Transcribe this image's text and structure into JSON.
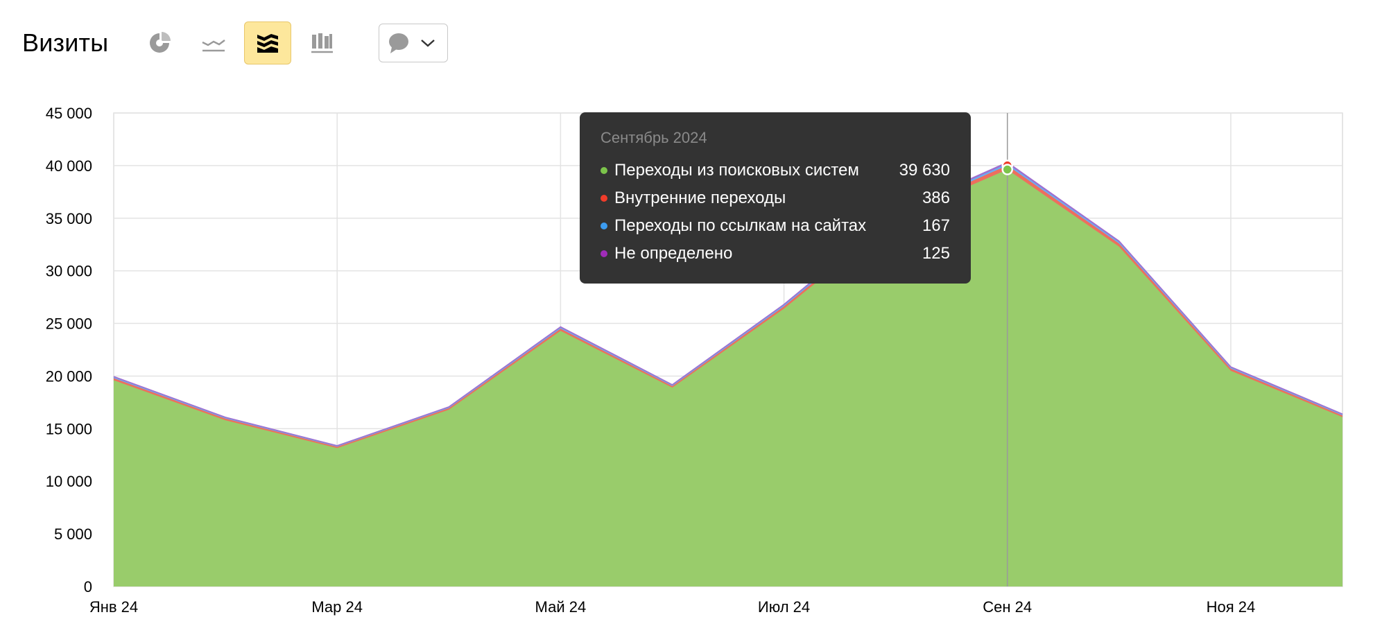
{
  "header": {
    "title": "Визиты",
    "views": [
      {
        "name": "pie-chart-icon",
        "active": false
      },
      {
        "name": "line-chart-icon",
        "active": false
      },
      {
        "name": "area-chart-icon",
        "active": true
      },
      {
        "name": "bar-chart-icon",
        "active": false
      }
    ],
    "annotations_icon": "speech-bubble-icon",
    "dropdown_icon": "chevron-down-icon"
  },
  "tooltip": {
    "title": "Сентябрь 2024",
    "rows": [
      {
        "label": "Переходы из поисковых систем",
        "value": "39 630",
        "color": "#7cc44b"
      },
      {
        "label": "Внутренние переходы",
        "value": "386",
        "color": "#f03c2a"
      },
      {
        "label": "Переходы по ссылкам на сайтах",
        "value": "167",
        "color": "#3c9cf0"
      },
      {
        "label": "Не определено",
        "value": "125",
        "color": "#a02cb8"
      }
    ]
  },
  "chart_data": {
    "type": "area",
    "stacked": true,
    "x": [
      "2024-01",
      "2024-02",
      "2024-03",
      "2024-04",
      "2024-05",
      "2024-06",
      "2024-07",
      "2024-08",
      "2024-09",
      "2024-10",
      "2024-11",
      "2024-12"
    ],
    "x_tick_labels": [
      "Янв 24",
      "Мар 24",
      "Май 24",
      "Июл 24",
      "Сен 24",
      "Ноя 24"
    ],
    "x_tick_indices": [
      0,
      2,
      4,
      6,
      8,
      10
    ],
    "y_tick_labels": [
      "0",
      "5 000",
      "10 000",
      "15 000",
      "20 000",
      "25 000",
      "30 000",
      "35 000",
      "40 000",
      "45 000"
    ],
    "ylim": [
      0,
      45000
    ],
    "series": [
      {
        "name": "Переходы из поисковых систем",
        "color": "#99cc6b",
        "values": [
          19600,
          15800,
          13150,
          16800,
          24300,
          18900,
          26400,
          35000,
          39630,
          32300,
          20500,
          16100
        ]
      },
      {
        "name": "Внутренние переходы",
        "color": "#ee6e5e",
        "values": [
          200,
          160,
          130,
          150,
          200,
          150,
          220,
          330,
          386,
          300,
          210,
          160
        ]
      },
      {
        "name": "Переходы по ссылкам на сайтах",
        "color": "#6aaef2",
        "values": [
          90,
          70,
          60,
          70,
          100,
          70,
          110,
          150,
          167,
          130,
          90,
          70
        ]
      },
      {
        "name": "Не определено",
        "color": "#a070d0",
        "values": [
          70,
          50,
          40,
          50,
          80,
          60,
          80,
          110,
          125,
          100,
          70,
          60
        ]
      }
    ],
    "highlight_index": 8,
    "grid": true
  }
}
